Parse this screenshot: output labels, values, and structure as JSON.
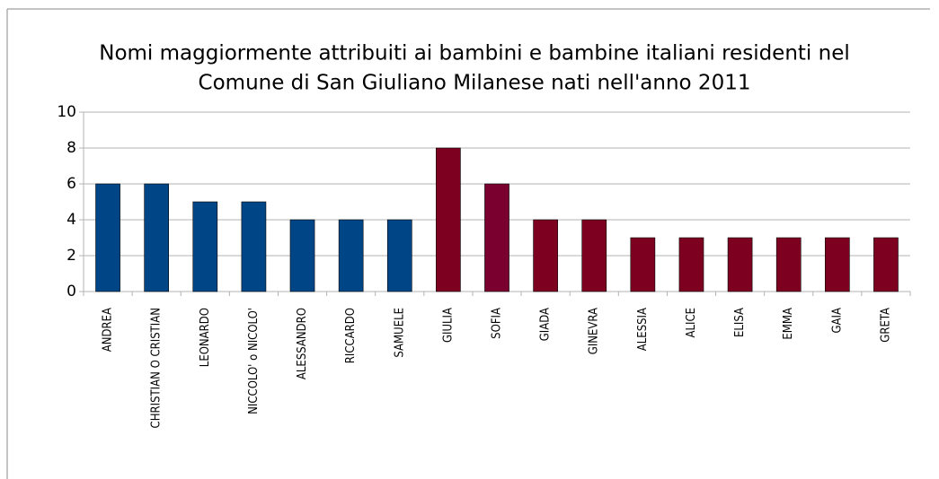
{
  "chart_data": {
    "type": "bar",
    "title": [
      "Nomi maggiormente attribuiti ai bambini e bambine italiani residenti nel",
      "Comune di San Giuliano Milanese nati nell'anno 2011"
    ],
    "categories": [
      "ANDREA",
      "CHRISTIAN O CRISTIAN",
      "LEONARDO",
      "NICCOLO' o NICOLO'",
      "ALESSANDRO",
      "RICCARDO",
      "SAMUELE",
      "GIULIA",
      "SOFIA",
      "GIADA",
      "GINEVRA",
      "ALESSIA",
      "ALICE",
      "ELISA",
      "EMMA",
      "GAIA",
      "GRETA"
    ],
    "values": [
      6,
      6,
      5,
      5,
      4,
      4,
      4,
      8,
      6,
      4,
      4,
      3,
      3,
      3,
      3,
      3,
      3
    ],
    "colors": [
      "#004586",
      "#004586",
      "#004586",
      "#004586",
      "#004586",
      "#004586",
      "#004586",
      "#7e0021",
      "#7a0030",
      "#7e0021",
      "#7e0021",
      "#7e0021",
      "#7e0021",
      "#7e0021",
      "#7e0021",
      "#7e0021",
      "#7e0021"
    ],
    "ylim": [
      0,
      10
    ],
    "yticks": [
      0,
      2,
      4,
      6,
      8,
      10
    ],
    "grid": true
  }
}
